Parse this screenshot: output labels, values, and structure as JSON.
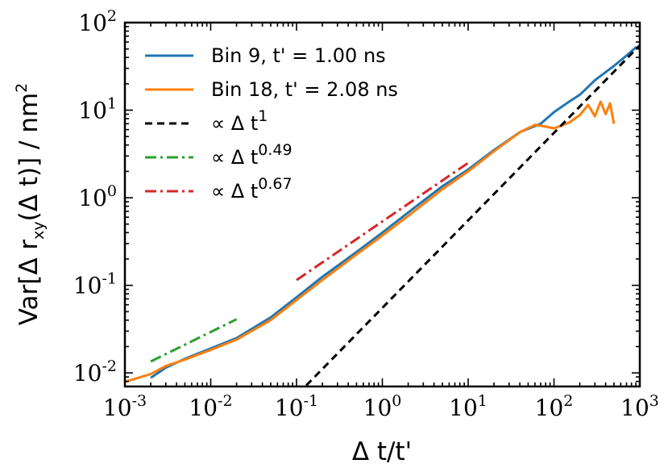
{
  "chart_data": {
    "type": "line",
    "xscale": "log",
    "yscale": "log",
    "xlim": [
      0.001,
      1000
    ],
    "ylim": [
      0.007,
      100
    ],
    "x_ticks": [
      {
        "base": "10",
        "exp": "-3",
        "value": 0.001
      },
      {
        "base": "10",
        "exp": "-2",
        "value": 0.01
      },
      {
        "base": "10",
        "exp": "-1",
        "value": 0.1
      },
      {
        "base": "10",
        "exp": "0",
        "value": 1
      },
      {
        "base": "10",
        "exp": "1",
        "value": 10
      },
      {
        "base": "10",
        "exp": "2",
        "value": 100
      },
      {
        "base": "10",
        "exp": "3",
        "value": 1000
      }
    ],
    "y_ticks": [
      {
        "base": "10",
        "exp": "-2",
        "value": 0.01
      },
      {
        "base": "10",
        "exp": "-1",
        "value": 0.1
      },
      {
        "base": "10",
        "exp": "0",
        "value": 1
      },
      {
        "base": "10",
        "exp": "1",
        "value": 10
      },
      {
        "base": "10",
        "exp": "2",
        "value": 100
      }
    ],
    "xlabel": {
      "main": "Δ t/t'"
    },
    "ylabel": {
      "pre": "Var[Δ r",
      "sub": "xy",
      "post": "(Δ t)] / nm",
      "sup": "2"
    },
    "legend": {
      "position": "upper left",
      "frame": false
    },
    "series": [
      {
        "name": "Bin 9, t' = 1.00 ns",
        "color": "#1f77b4",
        "style": "solid",
        "x": [
          0.002,
          0.003,
          0.005,
          0.01,
          0.02,
          0.05,
          0.1,
          0.2,
          0.5,
          1,
          2,
          5,
          10,
          20,
          40,
          70,
          100,
          150,
          200,
          300,
          500,
          700,
          900,
          1000
        ],
        "y": [
          0.0088,
          0.0115,
          0.0145,
          0.019,
          0.025,
          0.043,
          0.073,
          0.125,
          0.24,
          0.4,
          0.68,
          1.35,
          2.1,
          3.5,
          5.6,
          7.0,
          9.5,
          12.5,
          15,
          22,
          32,
          42,
          52,
          50
        ]
      },
      {
        "name": "Bin 18, t' = 2.08 ns",
        "color": "#ff7f0e",
        "style": "solid",
        "x": [
          0.001,
          0.002,
          0.003,
          0.005,
          0.01,
          0.02,
          0.05,
          0.1,
          0.2,
          0.5,
          1,
          2,
          5,
          10,
          20,
          40,
          60,
          80,
          100,
          150,
          200,
          250,
          300,
          350,
          400,
          450,
          500
        ],
        "y": [
          0.0079,
          0.0097,
          0.012,
          0.0142,
          0.0183,
          0.024,
          0.04,
          0.068,
          0.115,
          0.225,
          0.37,
          0.62,
          1.25,
          2.0,
          3.4,
          5.6,
          6.8,
          6.5,
          6.2,
          7.2,
          8.8,
          11.5,
          8.5,
          12.5,
          9.0,
          12.0,
          7.0
        ]
      },
      {
        "name": "∝ Δ t",
        "name_sup": "1",
        "color": "#000000",
        "style": "dashed",
        "x": [
          0.13,
          1000
        ],
        "y": [
          0.0072,
          55
        ]
      },
      {
        "name": "∝ Δ t",
        "name_sup": "0.49",
        "color": "#2ca02c",
        "style": "dashdot",
        "x": [
          0.002,
          0.02
        ],
        "y": [
          0.0135,
          0.041
        ]
      },
      {
        "name": "∝ Δ t",
        "name_sup": "0.67",
        "color": "#d62728",
        "style": "dashdot",
        "x": [
          0.1,
          10
        ],
        "y": [
          0.115,
          2.5
        ]
      }
    ]
  }
}
